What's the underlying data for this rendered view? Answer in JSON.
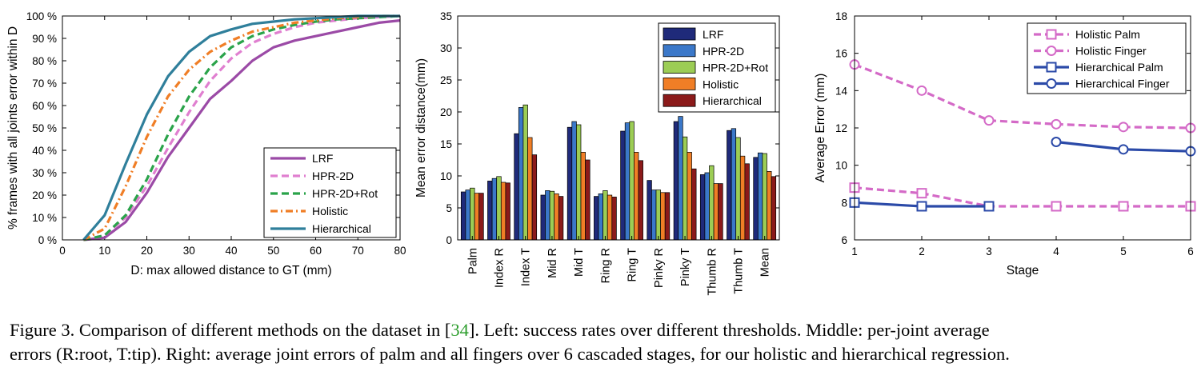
{
  "figure": {
    "caption_parts": [
      {
        "text": "Figure 3. Comparison of different methods on the dataset in [",
        "cls": ""
      },
      {
        "text": "34",
        "cls": "ref"
      },
      {
        "text": "]. Left: success rates over different thresholds. Middle: per-joint average",
        "cls": ""
      },
      {
        "text": "\n",
        "cls": "br"
      },
      {
        "text": "errors (R:root, T:tip). Right: average joint errors of palm and all fingers over 6 cascaded stages, for our holistic and hierarchical regression.",
        "cls": ""
      }
    ]
  },
  "chart_data": [
    {
      "type": "line",
      "xlabel": "D: max allowed distance to GT (mm)",
      "ylabel": "% frames with all joints error within D",
      "xlim": [
        0,
        80
      ],
      "ylim": [
        0,
        100
      ],
      "xticks": [
        0,
        10,
        20,
        30,
        40,
        50,
        60,
        70,
        80
      ],
      "yticks": [
        0,
        10,
        20,
        30,
        40,
        50,
        60,
        70,
        80,
        90,
        100
      ],
      "ytick_suffix": " %",
      "legend_position": "bottom-right",
      "x": [
        5,
        10,
        15,
        20,
        25,
        30,
        35,
        40,
        45,
        50,
        55,
        60,
        65,
        70,
        75,
        80
      ],
      "series": [
        {
          "name": "LRF",
          "color": "#9b4aa6",
          "dash": "solid",
          "values": [
            0,
            1,
            8,
            21,
            37,
            50,
            63,
            71,
            80,
            86,
            89,
            91,
            93,
            95,
            97,
            98
          ]
        },
        {
          "name": "HPR-2D",
          "color": "#e07fd0",
          "dash": "dash",
          "values": [
            0,
            2,
            10,
            24,
            41,
            57,
            71,
            81,
            88,
            92,
            95,
            97,
            98,
            99,
            99.5,
            100
          ]
        },
        {
          "name": "HPR-2D+Rot",
          "color": "#2aa34a",
          "dash": "dash",
          "values": [
            0,
            2,
            11,
            27,
            47,
            64,
            77,
            86,
            91,
            94,
            96,
            97.5,
            98.5,
            99,
            99.5,
            100
          ]
        },
        {
          "name": "Holistic",
          "color": "#f07e26",
          "dash": "dashdot",
          "values": [
            0,
            5,
            24,
            46,
            64,
            76,
            84,
            89,
            93,
            95,
            97,
            98,
            99,
            99.5,
            100,
            100
          ]
        },
        {
          "name": "Hierarchical",
          "color": "#2f7f9b",
          "dash": "solid",
          "values": [
            0,
            11,
            34,
            56,
            73,
            84,
            91,
            94,
            96.5,
            97.5,
            98.5,
            99,
            99.5,
            100,
            100,
            100
          ]
        }
      ]
    },
    {
      "type": "bar",
      "ylabel": "Mean error distance(mm)",
      "ylim": [
        0,
        35
      ],
      "yticks": [
        0,
        5,
        10,
        15,
        20,
        25,
        30,
        35
      ],
      "legend_position": "top-right",
      "categories": [
        "Palm",
        "Index R",
        "Index T",
        "Mid R",
        "Mid T",
        "Ring R",
        "Ring T",
        "Pinky R",
        "Pinky T",
        "Thumb R",
        "Thumb T",
        "Mean"
      ],
      "series": [
        {
          "name": "LRF",
          "color": "#1f2a7a",
          "values": [
            7.5,
            9.2,
            16.6,
            7.0,
            17.6,
            6.8,
            17.0,
            9.3,
            18.5,
            10.2,
            17.1,
            12.9
          ]
        },
        {
          "name": "HPR-2D",
          "color": "#3b78c9",
          "values": [
            7.8,
            9.6,
            20.7,
            7.7,
            18.5,
            7.2,
            18.3,
            7.8,
            19.3,
            10.5,
            17.4,
            13.6
          ]
        },
        {
          "name": "HPR-2D+Rot",
          "color": "#9ccd55",
          "values": [
            8.1,
            9.9,
            21.1,
            7.6,
            18.0,
            7.7,
            18.5,
            7.8,
            16.1,
            11.6,
            16.0,
            13.5
          ]
        },
        {
          "name": "Holistic",
          "color": "#f07e26",
          "values": [
            7.3,
            9.0,
            16.0,
            7.2,
            13.7,
            7.0,
            13.7,
            7.4,
            13.7,
            8.8,
            13.1,
            10.7
          ]
        },
        {
          "name": "Hierarchical",
          "color": "#8b1a1a",
          "values": [
            7.3,
            8.9,
            13.3,
            6.8,
            12.5,
            6.7,
            12.4,
            7.4,
            11.1,
            8.8,
            11.9,
            9.9
          ]
        }
      ]
    },
    {
      "type": "line",
      "xlabel": "Stage",
      "ylabel": "Average Error (mm)",
      "xlim": [
        1,
        6
      ],
      "ylim": [
        6,
        18
      ],
      "xticks": [
        1,
        2,
        3,
        4,
        5,
        6
      ],
      "yticks": [
        6,
        8,
        10,
        12,
        14,
        16,
        18
      ],
      "legend_position": "top-right",
      "series": [
        {
          "name": "Holistic Palm",
          "color": "#d46ac7",
          "dash": "dash",
          "marker": "square",
          "x": [
            1,
            2,
            3,
            4,
            5,
            6
          ],
          "values": [
            8.8,
            8.5,
            7.8,
            7.8,
            7.8,
            7.8
          ]
        },
        {
          "name": "Holistic Finger",
          "color": "#d46ac7",
          "dash": "dash",
          "marker": "circle",
          "x": [
            1,
            2,
            3,
            4,
            5,
            6
          ],
          "values": [
            15.4,
            14.0,
            12.4,
            12.2,
            12.05,
            12.0
          ]
        },
        {
          "name": "Hierarchical Palm",
          "color": "#2b4aa8",
          "dash": "solid",
          "marker": "square",
          "x": [
            1,
            2,
            3
          ],
          "values": [
            8.0,
            7.8,
            7.8
          ]
        },
        {
          "name": "Hierarchical Finger",
          "color": "#2b4aa8",
          "dash": "solid",
          "marker": "circle",
          "x": [
            4,
            5,
            6
          ],
          "values": [
            11.25,
            10.85,
            10.75
          ]
        }
      ]
    }
  ]
}
